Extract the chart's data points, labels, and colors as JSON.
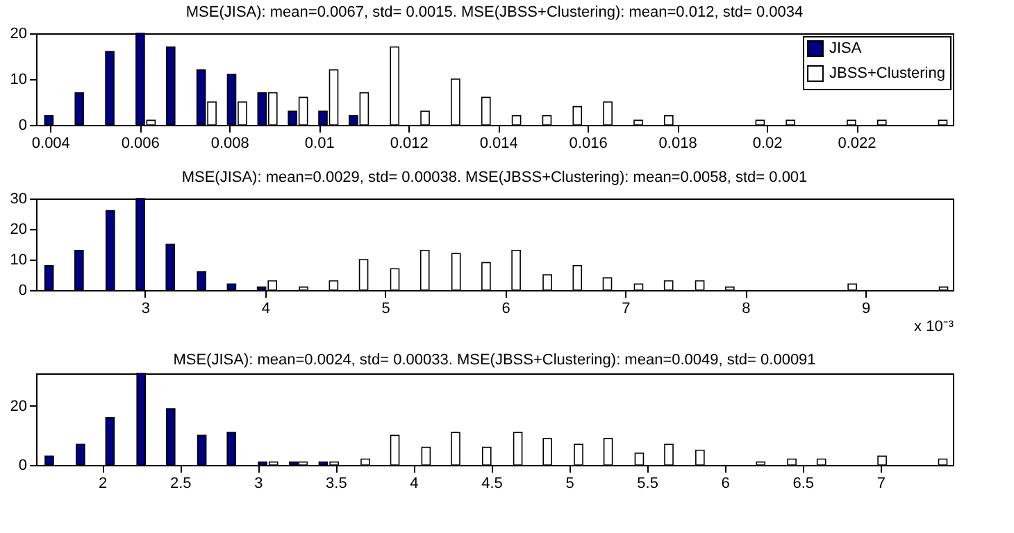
{
  "chart_data": [
    {
      "type": "bar",
      "title": "MSE(JISA): mean=0.0067, std= 0.0015.     MSE(JBSS+Clustering): mean=0.012, std= 0.0034",
      "legend": "top right",
      "grid": false,
      "xlim": [
        0.00384,
        0.024
      ],
      "xticks": [
        0.004,
        0.006,
        0.008,
        0.01,
        0.012,
        0.014,
        0.016,
        0.018,
        0.02,
        0.022
      ],
      "ylim": [
        0,
        20
      ],
      "yticks": [
        0,
        10,
        20
      ],
      "series": [
        {
          "name": "JISA",
          "color": "#000080",
          "x": [
            0.00397,
            0.00465,
            0.00533,
            0.00601,
            0.00669,
            0.00737,
            0.00805,
            0.00873,
            0.00941,
            0.01009,
            0.01077,
            0.01145,
            0.01213,
            0.01281,
            0.01349,
            0.01417,
            0.01485,
            0.01553,
            0.01621,
            0.01689,
            0.01757,
            0.01825,
            0.01893,
            0.01961,
            0.02029,
            0.02097,
            0.02165,
            0.02233,
            0.02301,
            0.02369
          ],
          "values": [
            2,
            7,
            16,
            20,
            17,
            12,
            11,
            7,
            3,
            3,
            2,
            0,
            0,
            0,
            0,
            0,
            0,
            0,
            0,
            0,
            0,
            0,
            0,
            0,
            0,
            0,
            0,
            0,
            0,
            0
          ]
        },
        {
          "name": "JBSS+Clustering",
          "color": "#ffffff",
          "x": [
            0.00421,
            0.00489,
            0.00557,
            0.00625,
            0.00693,
            0.00761,
            0.00829,
            0.00897,
            0.00965,
            0.01033,
            0.01101,
            0.01169,
            0.01237,
            0.01305,
            0.01373,
            0.01441,
            0.01509,
            0.01577,
            0.01645,
            0.01713,
            0.01781,
            0.01849,
            0.01917,
            0.01985,
            0.02053,
            0.02121,
            0.02189,
            0.02257,
            0.02325,
            0.02393
          ],
          "values": [
            0,
            0,
            0,
            1,
            0,
            5,
            5,
            7,
            6,
            12,
            7,
            17,
            3,
            10,
            6,
            2,
            2,
            4,
            5,
            1,
            2,
            0,
            0,
            1,
            1,
            0,
            1,
            1,
            0,
            1
          ]
        }
      ]
    },
    {
      "type": "bar",
      "title": "MSE(JISA): mean=0.0029, std= 0.00038.     MSE(JBSS+Clustering): mean=0.0058, std= 0.001",
      "xlabel": "x 10⁻³",
      "legend": "top right",
      "grid": false,
      "xlim": [
        2.15,
        9.67
      ],
      "xticks": [
        3,
        4,
        5,
        6,
        7,
        8,
        9
      ],
      "ylim": [
        0,
        30
      ],
      "yticks": [
        0,
        10,
        20,
        30
      ],
      "series": [
        {
          "name": "JISA",
          "color": "#000080",
          "x": [
            2.2,
            2.45,
            2.71,
            2.96,
            3.21,
            3.47,
            3.72,
            3.97,
            4.23,
            4.48,
            4.73,
            4.99,
            5.24,
            5.5,
            5.75,
            6,
            6.26,
            6.51,
            6.77,
            7.02,
            7.27,
            7.53,
            7.78,
            8.03,
            8.29,
            8.54,
            8.8,
            9.05,
            9.3,
            9.56
          ],
          "values": [
            8,
            13,
            26,
            30,
            15,
            6,
            2,
            1,
            0,
            0,
            0,
            0,
            0,
            0,
            0,
            0,
            0,
            0,
            0,
            0,
            0,
            0,
            0,
            0,
            0,
            0,
            0,
            0,
            0,
            0
          ]
        },
        {
          "name": "JBSS+Clustering",
          "color": "#ffffff",
          "x": [
            2.29,
            2.54,
            2.79,
            3.05,
            3.3,
            3.56,
            3.81,
            4.06,
            4.32,
            4.57,
            4.82,
            5.08,
            5.33,
            5.59,
            5.84,
            6.09,
            6.35,
            6.6,
            6.85,
            7.11,
            7.36,
            7.62,
            7.87,
            8.12,
            8.38,
            8.63,
            8.89,
            9.14,
            9.39,
            9.65
          ],
          "values": [
            0,
            0,
            0,
            0,
            0,
            0,
            0,
            3,
            1,
            3,
            10,
            7,
            13,
            12,
            9,
            13,
            5,
            8,
            4,
            2,
            3,
            3,
            1,
            0,
            0,
            0,
            2,
            0,
            0,
            1
          ]
        }
      ]
    },
    {
      "type": "bar",
      "title": "MSE(JISA): mean=0.0024, std= 0.00033.     MSE(JBSS+Clustering): mean=0.0049, std= 0.00091",
      "legend": "top right",
      "grid": false,
      "xlim": [
        1.62,
        7.42
      ],
      "xticks": [
        2,
        2.5,
        3,
        3.5,
        4,
        4.5,
        5,
        5.5,
        6,
        6.5,
        7
      ],
      "ylim": [
        0,
        31
      ],
      "yticks": [
        0,
        20
      ],
      "series": [
        {
          "name": "JISA",
          "color": "#000080",
          "x": [
            1.66,
            1.86,
            2.05,
            2.25,
            2.44,
            2.64,
            2.83,
            3.03,
            3.23,
            3.42,
            3.62,
            3.81,
            4.01,
            4.2,
            4.4,
            4.6,
            4.79,
            4.99,
            5.18,
            5.38,
            5.57,
            5.77,
            5.97,
            6.16,
            6.36,
            6.55,
            6.75,
            6.94,
            7.14,
            7.34
          ],
          "values": [
            3,
            7,
            16,
            31,
            19,
            10,
            11,
            1,
            1,
            1,
            0,
            0,
            0,
            0,
            0,
            0,
            0,
            0,
            0,
            0,
            0,
            0,
            0,
            0,
            0,
            0,
            0,
            0,
            0,
            0
          ]
        },
        {
          "name": "JBSS+Clustering",
          "color": "#ffffff",
          "x": [
            1.73,
            1.92,
            2.12,
            2.32,
            2.51,
            2.71,
            2.9,
            3.1,
            3.29,
            3.49,
            3.69,
            3.88,
            4.08,
            4.27,
            4.47,
            4.67,
            4.86,
            5.06,
            5.25,
            5.45,
            5.64,
            5.84,
            6.03,
            6.23,
            6.43,
            6.62,
            6.82,
            7.01,
            7.21,
            7.4
          ],
          "values": [
            0,
            0,
            0,
            0,
            0,
            0,
            0,
            1,
            1,
            1,
            2,
            10,
            6,
            11,
            6,
            11,
            9,
            7,
            9,
            4,
            7,
            5,
            0,
            1,
            2,
            2,
            0,
            3,
            0,
            2
          ]
        }
      ]
    }
  ]
}
